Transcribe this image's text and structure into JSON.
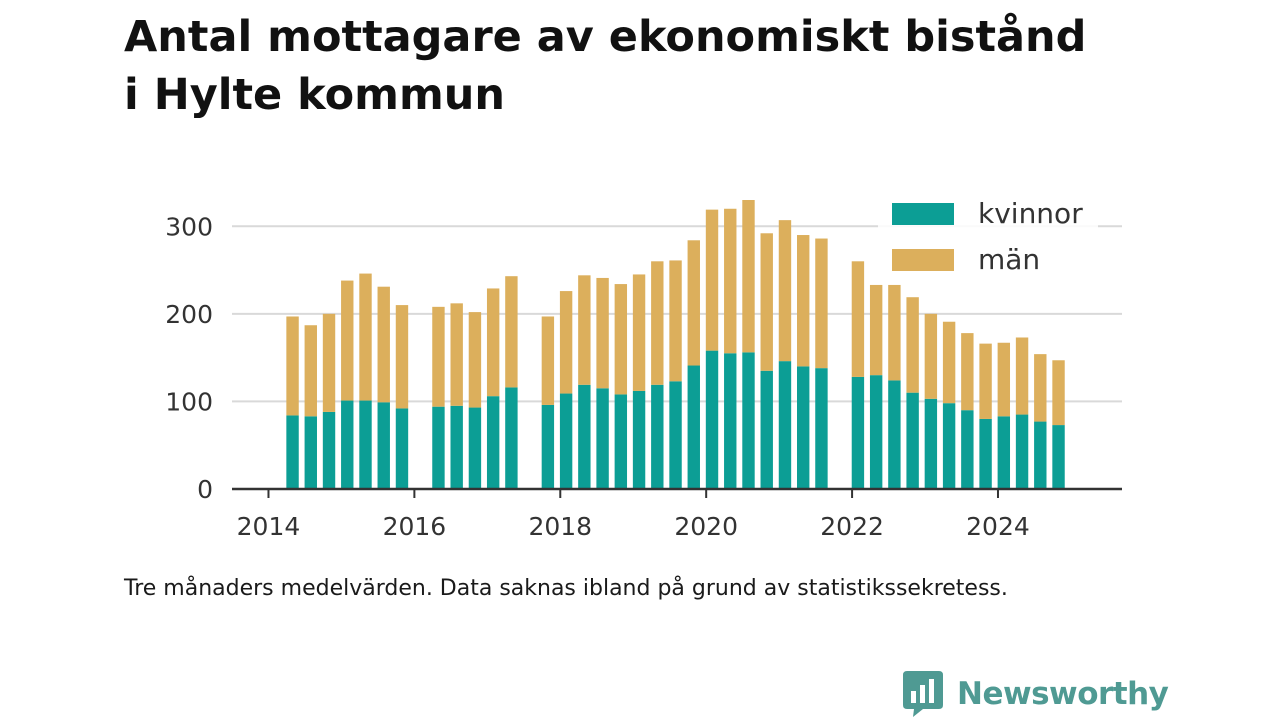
{
  "title": {
    "line1": "Antal mottagare av ekonomiskt bistånd",
    "line2": "i Hylte kommun"
  },
  "note": "Tre månaders medelvärden. Data saknas ibland på grund av statistikssekretess.",
  "brand": {
    "name": "Newsworthy",
    "icon": "newsworthy-logo-icon",
    "color": "#4f9a93"
  },
  "colors": {
    "kvinnor": "#0c9e95",
    "man": "#dcaf5c",
    "grid": "#d9d9d9",
    "axis": "#333333",
    "text": "#333333"
  },
  "chart_data": {
    "type": "bar",
    "stacked": true,
    "title": "Antal mottagare av ekonomiskt bistånd i Hylte kommun",
    "xlabel": "",
    "ylabel": "",
    "xlim": [
      2013.5,
      2025.7
    ],
    "ylim": [
      0,
      330
    ],
    "x_ticks": [
      2014,
      2016,
      2018,
      2020,
      2022,
      2024
    ],
    "y_ticks": [
      0,
      100,
      200,
      300
    ],
    "grid": true,
    "legend": {
      "position": "top-right",
      "entries": [
        "kvinnor",
        "män"
      ]
    },
    "x": [
      2014.33,
      2014.58,
      2014.83,
      2015.08,
      2015.33,
      2015.58,
      2015.83,
      2016.33,
      2016.58,
      2016.83,
      2017.08,
      2017.33,
      2017.83,
      2018.08,
      2018.33,
      2018.58,
      2018.83,
      2019.08,
      2019.33,
      2019.58,
      2019.83,
      2020.08,
      2020.33,
      2020.58,
      2020.83,
      2021.08,
      2021.33,
      2021.58,
      2022.08,
      2022.33,
      2022.58,
      2022.83,
      2023.08,
      2023.33,
      2023.58,
      2023.83,
      2024.08,
      2024.33,
      2024.58,
      2024.83
    ],
    "series": [
      {
        "name": "kvinnor",
        "values": [
          84,
          83,
          88,
          101,
          101,
          99,
          92,
          94,
          95,
          93,
          106,
          116,
          96,
          109,
          119,
          115,
          108,
          112,
          119,
          123,
          141,
          158,
          155,
          156,
          135,
          146,
          140,
          138,
          128,
          130,
          124,
          110,
          103,
          98,
          90,
          80,
          83,
          85,
          77,
          73
        ]
      },
      {
        "name": "män",
        "values": [
          113,
          104,
          112,
          137,
          145,
          132,
          118,
          114,
          117,
          109,
          123,
          127,
          101,
          117,
          125,
          126,
          126,
          133,
          141,
          138,
          143,
          161,
          165,
          174,
          157,
          161,
          150,
          148,
          132,
          103,
          109,
          109,
          97,
          93,
          88,
          86,
          84,
          88,
          77,
          74
        ]
      }
    ]
  }
}
